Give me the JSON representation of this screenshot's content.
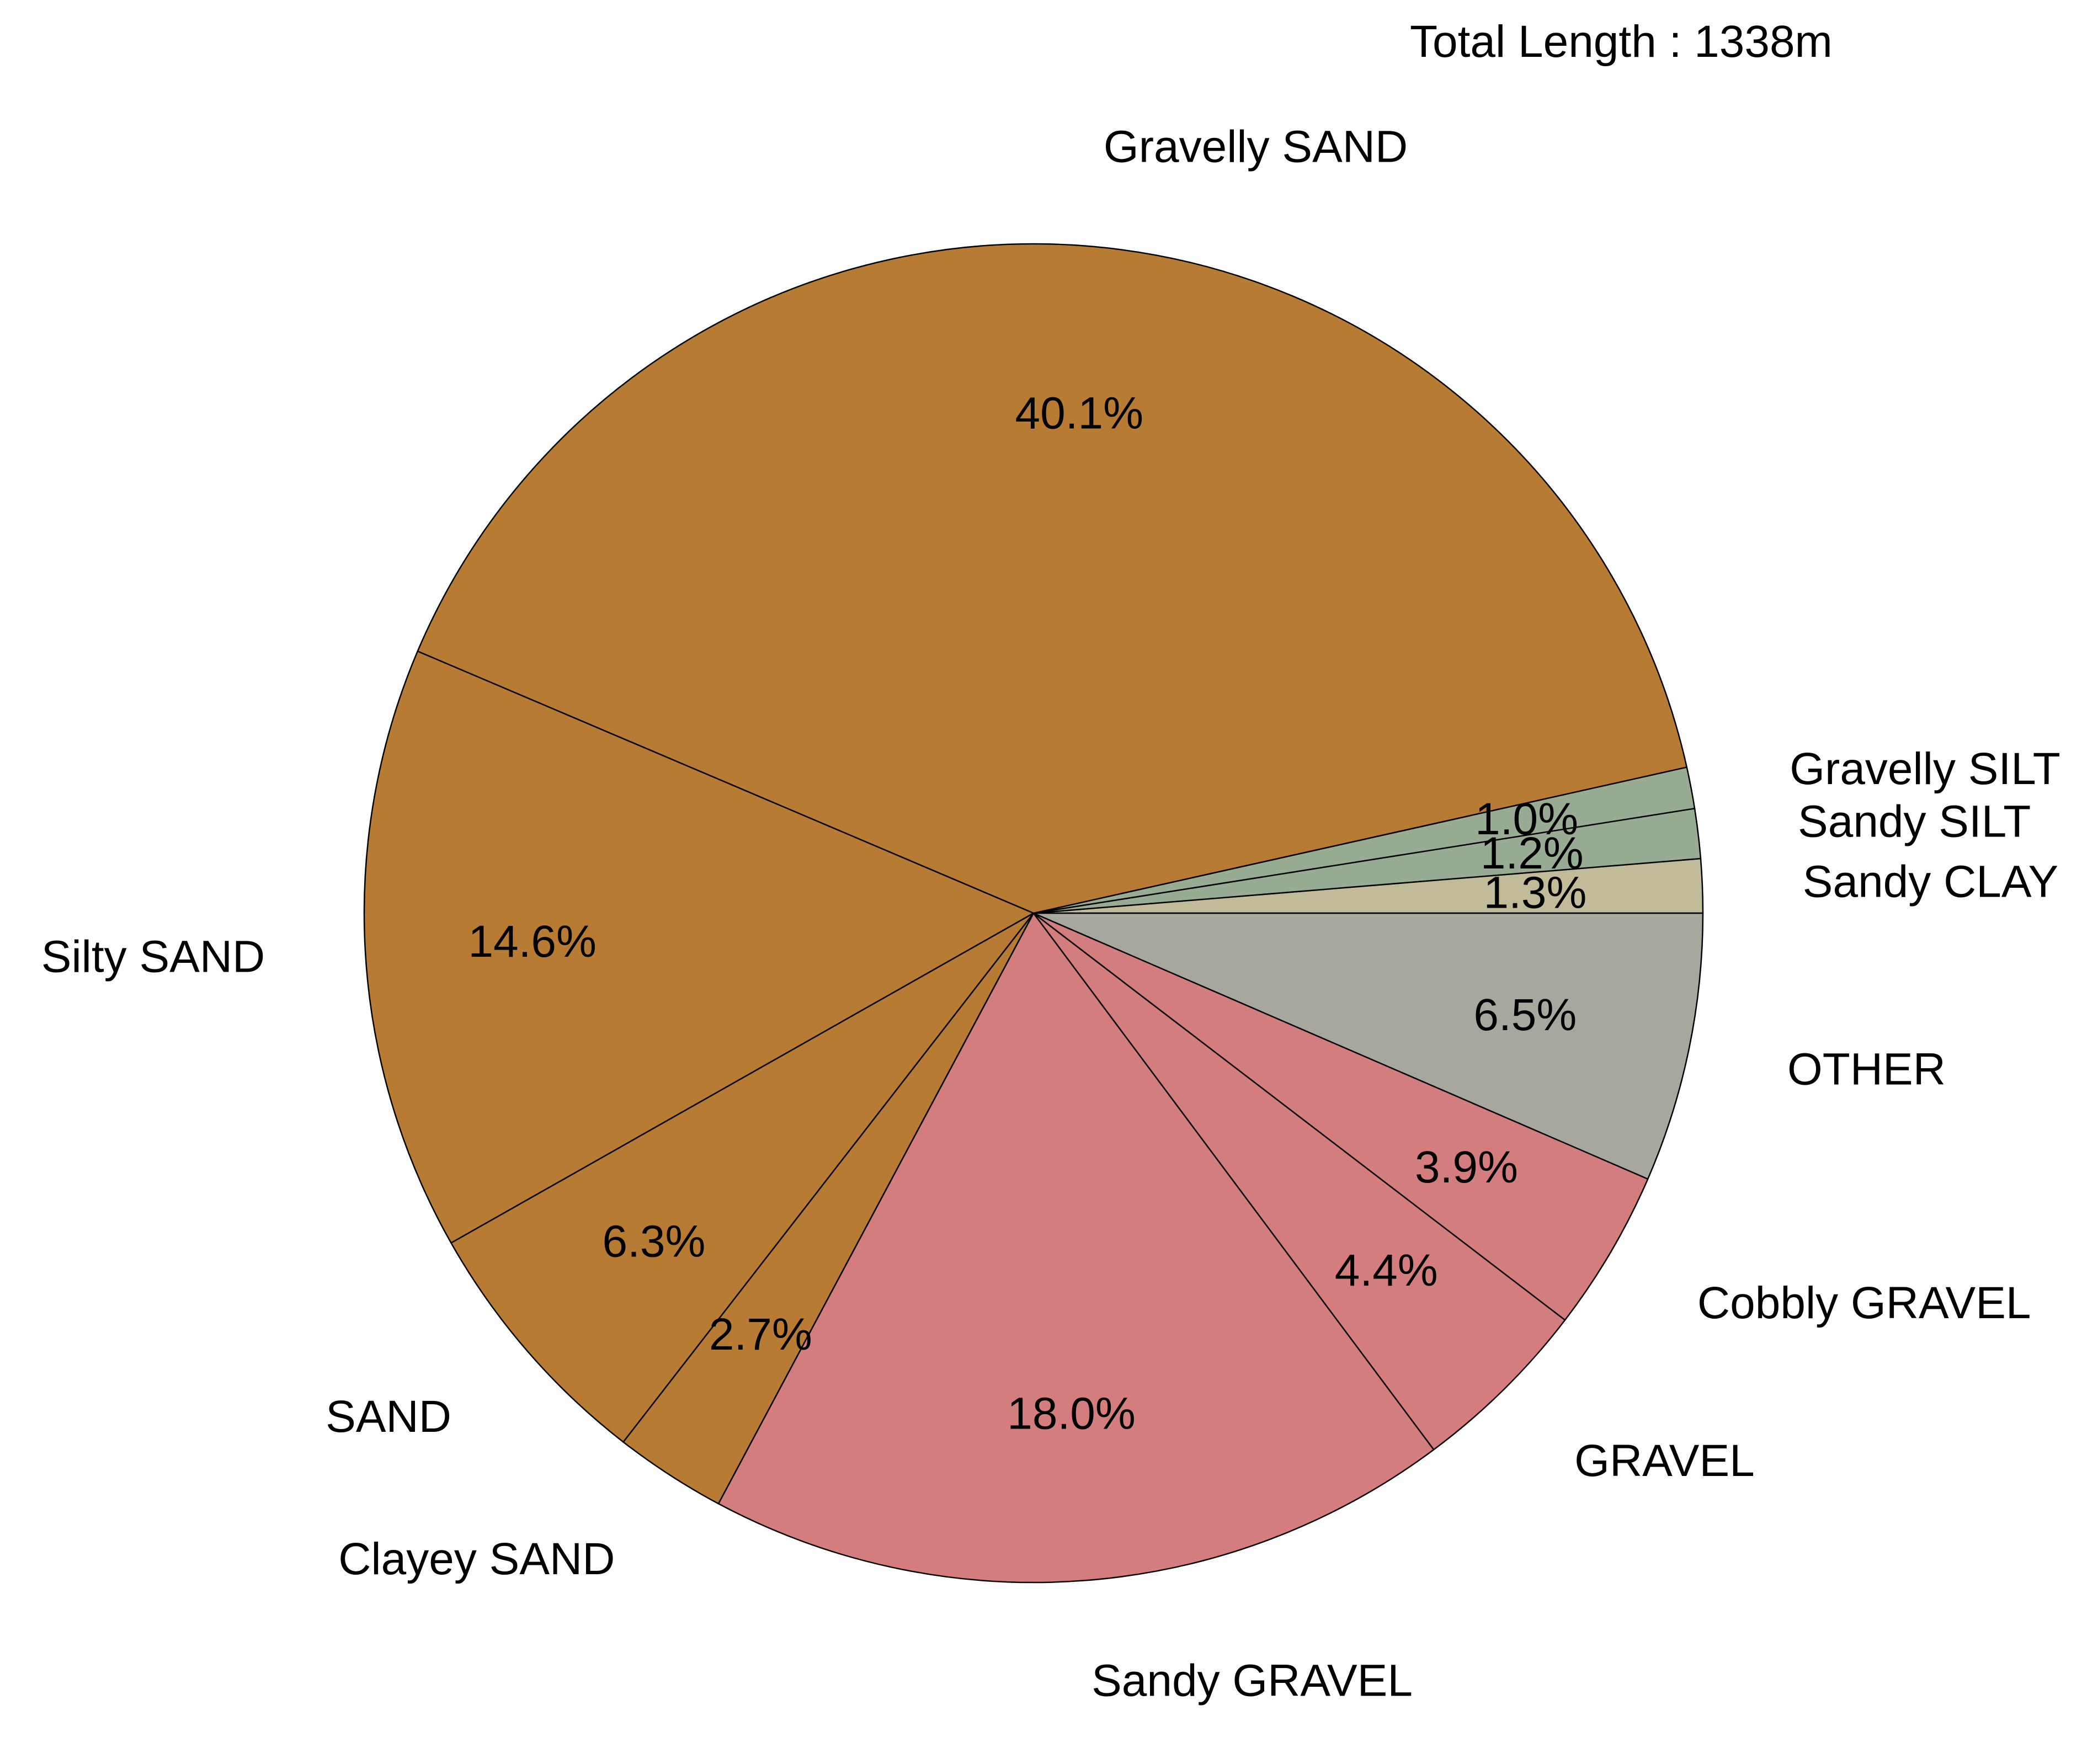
{
  "chart_data": {
    "type": "pie",
    "annotation": "Total Length : 1338m",
    "start_angle_deg": 0,
    "direction": "counterclockwise",
    "slices": [
      {
        "label": "Sandy CLAY",
        "value": 1.3,
        "pct_label": "1.3%",
        "color": "#c2bb99"
      },
      {
        "label": "Sandy SILT",
        "value": 1.2,
        "pct_label": "1.2%",
        "color": "#97ac92"
      },
      {
        "label": "Gravelly SILT",
        "value": 1.0,
        "pct_label": "1.0%",
        "color": "#97ac92"
      },
      {
        "label": "Gravelly SAND",
        "value": 40.1,
        "pct_label": "40.1%",
        "color": "#b77b33"
      },
      {
        "label": "Silty SAND",
        "value": 14.6,
        "pct_label": "14.6%",
        "color": "#b77b33"
      },
      {
        "label": "SAND",
        "value": 6.3,
        "pct_label": "6.3%",
        "color": "#b77b33"
      },
      {
        "label": "Clayey SAND",
        "value": 2.7,
        "pct_label": "2.7%",
        "color": "#b77b33"
      },
      {
        "label": "Sandy GRAVEL",
        "value": 18.0,
        "pct_label": "18.0%",
        "color": "#d37d7f"
      },
      {
        "label": "GRAVEL",
        "value": 4.4,
        "pct_label": "4.4%",
        "color": "#d37d7f"
      },
      {
        "label": "Cobbly GRAVEL",
        "value": 3.9,
        "pct_label": "3.9%",
        "color": "#d37d7f"
      },
      {
        "label": "OTHER",
        "value": 6.5,
        "pct_label": "6.5%",
        "color": "#a7a79e"
      }
    ]
  }
}
